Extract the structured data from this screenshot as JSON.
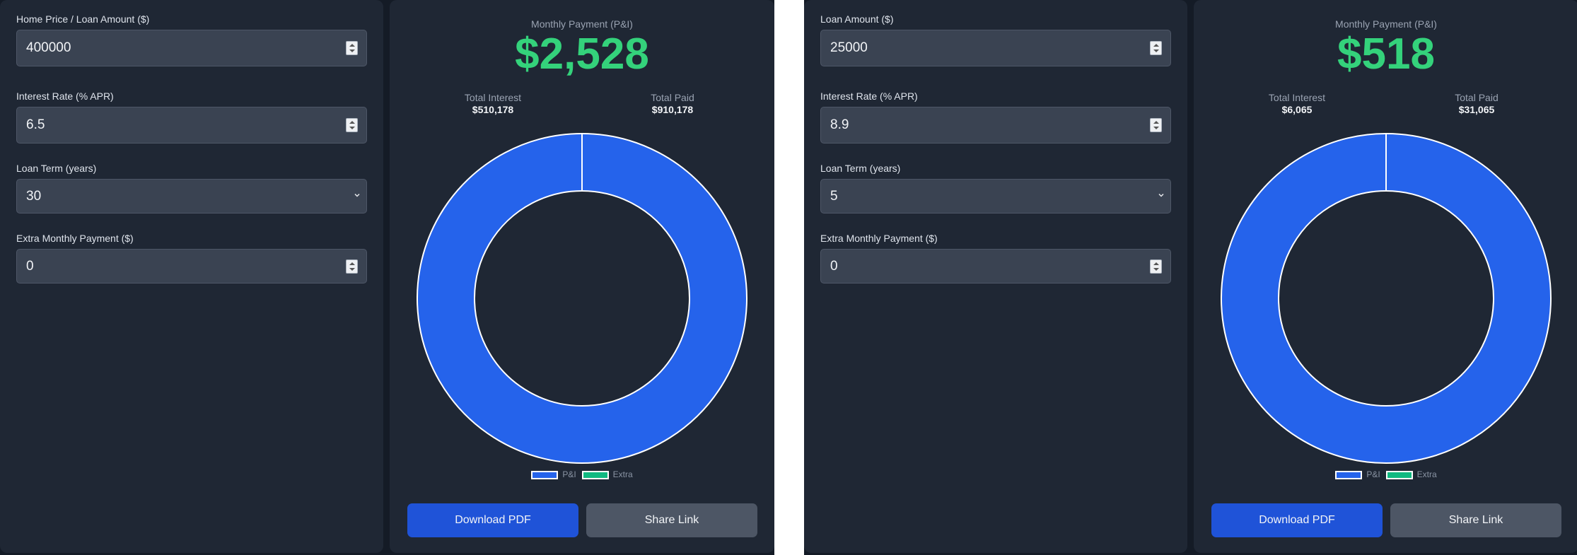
{
  "calculators": [
    {
      "fields": [
        {
          "label": "Home Price / Loan Amount ($)",
          "value": "400000",
          "type": "number"
        },
        {
          "label": "Interest Rate (% APR)",
          "value": "6.5",
          "type": "number"
        },
        {
          "label": "Loan Term (years)",
          "value": "30",
          "type": "select"
        },
        {
          "label": "Extra Monthly Payment ($)",
          "value": "0",
          "type": "number"
        }
      ],
      "result": {
        "monthly_label": "Monthly Payment (P&I)",
        "monthly_value": "$2,528",
        "total_interest_label": "Total Interest",
        "total_interest_value": "$510,178",
        "total_paid_label": "Total Paid",
        "total_paid_value": "$910,178"
      },
      "chart_data": {
        "type": "pie",
        "categories": [
          "P&I",
          "Extra"
        ],
        "values": [
          2528,
          0
        ],
        "colors": [
          "#2563eb",
          "#10b981"
        ],
        "legend": "bottom"
      },
      "buttons": {
        "download": "Download PDF",
        "share": "Share Link"
      }
    },
    {
      "fields": [
        {
          "label": "Loan Amount ($)",
          "value": "25000",
          "type": "number"
        },
        {
          "label": "Interest Rate (% APR)",
          "value": "8.9",
          "type": "number"
        },
        {
          "label": "Loan Term (years)",
          "value": "5",
          "type": "select"
        },
        {
          "label": "Extra Monthly Payment ($)",
          "value": "0",
          "type": "number"
        }
      ],
      "result": {
        "monthly_label": "Monthly Payment (P&I)",
        "monthly_value": "$518",
        "total_interest_label": "Total Interest",
        "total_interest_value": "$6,065",
        "total_paid_label": "Total Paid",
        "total_paid_value": "$31,065"
      },
      "chart_data": {
        "type": "pie",
        "categories": [
          "P&I",
          "Extra"
        ],
        "values": [
          518,
          0
        ],
        "colors": [
          "#2563eb",
          "#10b981"
        ],
        "legend": "bottom"
      },
      "buttons": {
        "download": "Download PDF",
        "share": "Share Link"
      }
    }
  ]
}
